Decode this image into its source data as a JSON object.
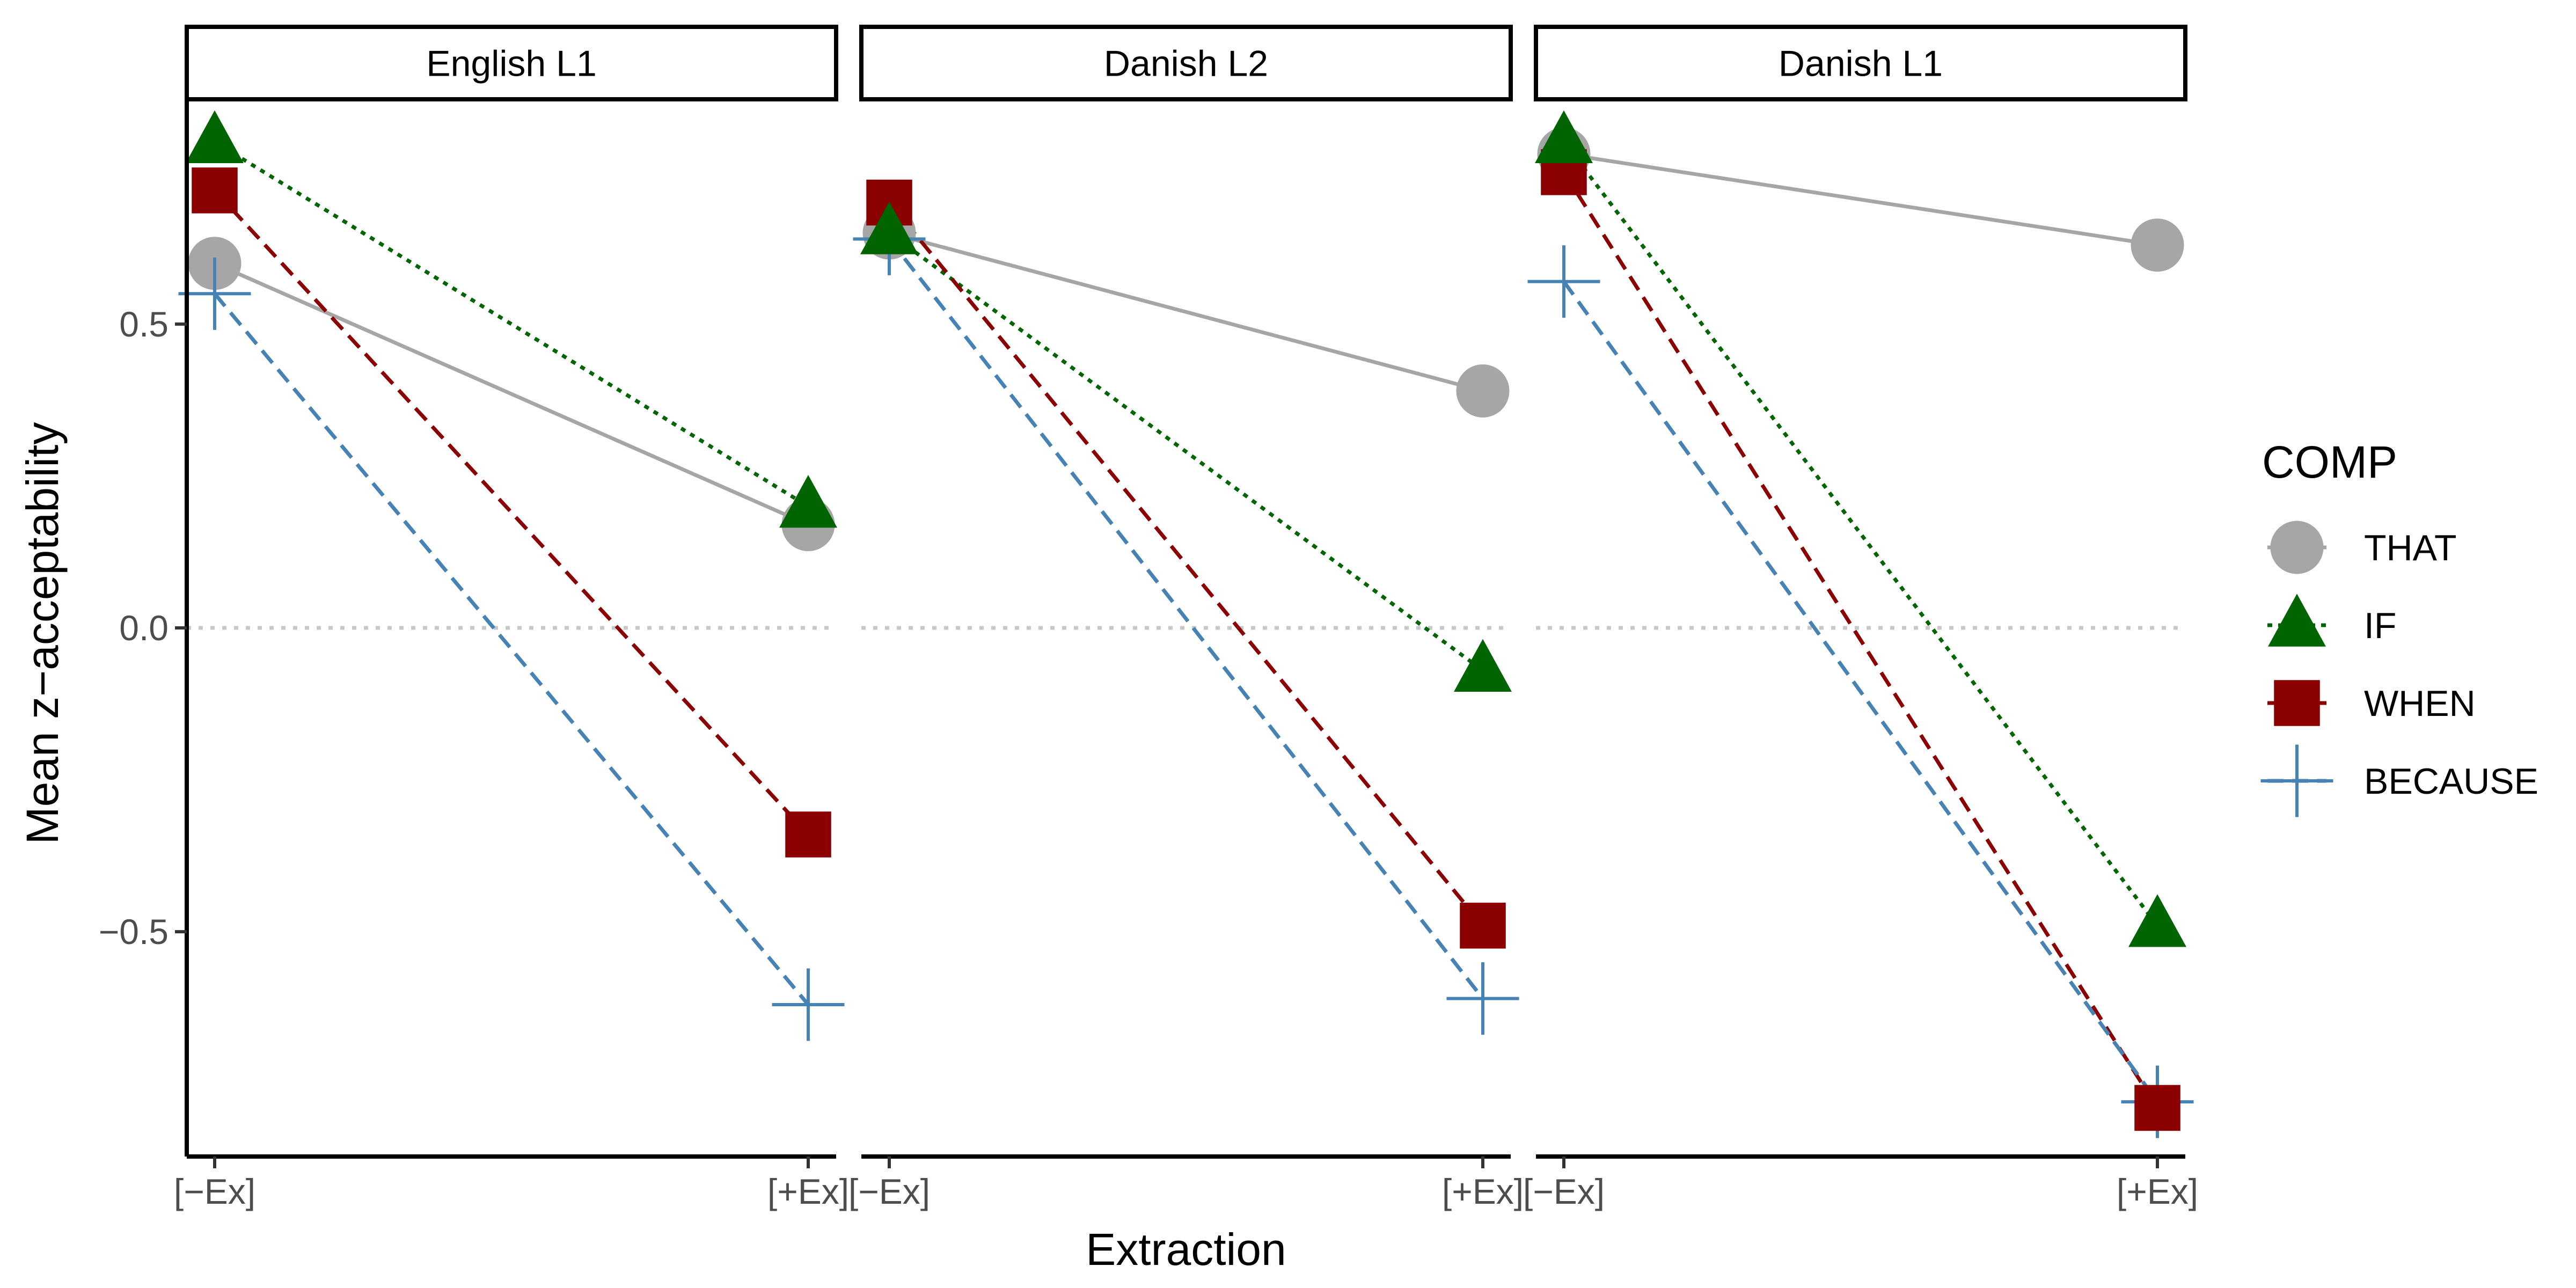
{
  "chart_data": {
    "type": "line",
    "x": [
      "[−Ex]",
      "[+Ex]"
    ],
    "xlabel": "Extraction",
    "ylabel": "Mean z−acceptability",
    "ylim": [
      -0.87,
      0.87
    ],
    "yticks": [
      0.5,
      0.0,
      -0.5
    ],
    "ytick_labels": [
      "0.5",
      "0.0",
      "−0.5"
    ],
    "reference_line": {
      "y": 0.0,
      "style": "dotted",
      "color": "#c8c8c8"
    },
    "legend_title": "COMP",
    "legend_position": "right",
    "grid": false,
    "panels": [
      {
        "label": "English L1",
        "series": [
          {
            "name": "THAT",
            "values": [
              0.6,
              0.17
            ]
          },
          {
            "name": "IF",
            "values": [
              0.8,
              0.2
            ]
          },
          {
            "name": "WHEN",
            "values": [
              0.72,
              -0.34
            ]
          },
          {
            "name": "BECAUSE",
            "values": [
              0.55,
              -0.62
            ]
          }
        ]
      },
      {
        "label": "Danish L2",
        "series": [
          {
            "name": "THAT",
            "values": [
              0.65,
              0.39
            ]
          },
          {
            "name": "IF",
            "values": [
              0.65,
              -0.07
            ]
          },
          {
            "name": "WHEN",
            "values": [
              0.7,
              -0.49
            ]
          },
          {
            "name": "BECAUSE",
            "values": [
              0.64,
              -0.61
            ]
          }
        ]
      },
      {
        "label": "Danish L1",
        "series": [
          {
            "name": "THAT",
            "values": [
              0.78,
              0.63
            ]
          },
          {
            "name": "IF",
            "values": [
              0.8,
              -0.49
            ]
          },
          {
            "name": "WHEN",
            "values": [
              0.75,
              -0.79
            ]
          },
          {
            "name": "BECAUSE",
            "values": [
              0.57,
              -0.78
            ]
          }
        ]
      }
    ],
    "series_styles": [
      {
        "name": "THAT",
        "color": "#a6a6a6",
        "line": "solid",
        "marker": "circle"
      },
      {
        "name": "IF",
        "color": "#006400",
        "line": "dotted",
        "marker": "triangle"
      },
      {
        "name": "WHEN",
        "color": "#8b0000",
        "line": "dashed",
        "marker": "square"
      },
      {
        "name": "BECAUSE",
        "color": "#4682b4",
        "line": "dashed",
        "marker": "plus"
      }
    ]
  }
}
